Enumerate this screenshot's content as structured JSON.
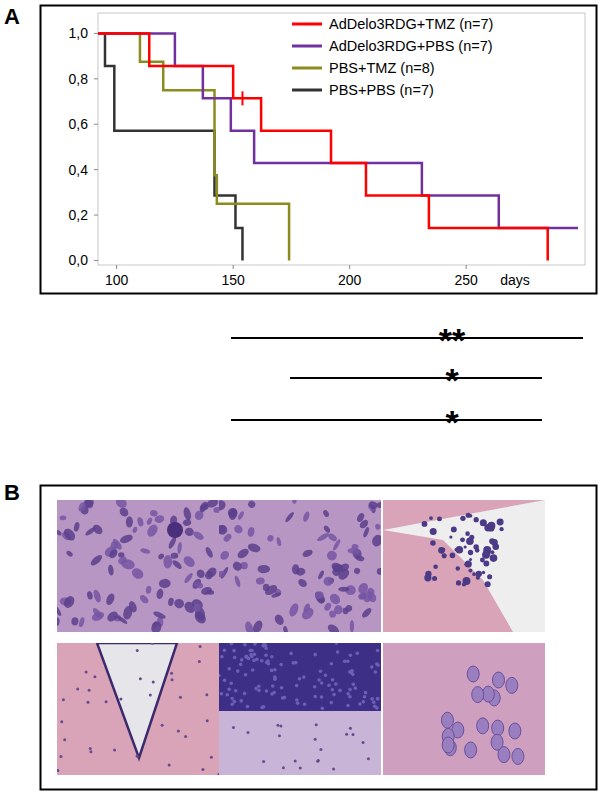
{
  "panel_labels": [
    "A",
    "B"
  ],
  "chart_data": {
    "type": "step",
    "xlabel": "days",
    "xlim": [
      92,
      301
    ],
    "xticks": [
      100,
      150,
      200,
      250
    ],
    "ylim": [
      -0.02,
      1.09
    ],
    "yticks": [
      {
        "value": 0,
        "label": "0,0"
      },
      {
        "value": 0.2,
        "label": "0,2"
      },
      {
        "value": 0.4,
        "label": "0,4"
      },
      {
        "value": 0.6,
        "label": "0,6"
      },
      {
        "value": 0.8,
        "label": "0,8"
      },
      {
        "value": 1,
        "label": "1,0"
      }
    ],
    "grid": false,
    "legend": "upper right",
    "series": [
      {
        "name": "AdDelo3RDG+TMZ (n=7)",
        "color": "#ff0000",
        "x": [
          92,
          114,
          150,
          162,
          192,
          207,
          234,
          285
        ],
        "values": [
          1,
          0.857,
          0.714,
          0.571,
          0.429,
          0.286,
          0.143,
          0
        ],
        "censored_x": [
          154
        ]
      },
      {
        "name": "AdDelo3RDG+PBS (n=7)",
        "color": "#7030a0",
        "x": [
          92,
          125,
          137,
          149,
          159,
          231,
          264,
          298
        ],
        "values": [
          1,
          0.857,
          0.714,
          0.571,
          0.429,
          0.286,
          0.143,
          0.143
        ]
      },
      {
        "name": "PBS+TMZ (n=8)",
        "color": "#8c8c1e",
        "x": [
          92,
          110,
          120,
          142,
          143,
          174
        ],
        "values": [
          1,
          0.875,
          0.75,
          0.375,
          0.25,
          0
        ]
      },
      {
        "name": "PBS+PBS (n=7)",
        "color": "#333333",
        "x": [
          92,
          95,
          99,
          142,
          151,
          154
        ],
        "values": [
          1,
          0.857,
          0.571,
          0.286,
          0.143,
          0
        ]
      }
    ]
  },
  "significance": [
    {
      "label": "**"
    },
    {
      "label": "*"
    },
    {
      "label": "*"
    }
  ]
}
